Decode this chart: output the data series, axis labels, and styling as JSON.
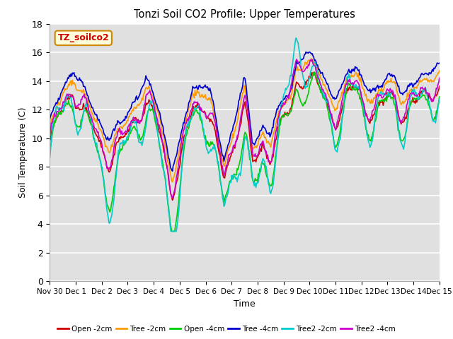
{
  "title": "Tonzi Soil CO2 Profile: Upper Temperatures",
  "xlabel": "Time",
  "ylabel": "Soil Temperature (C)",
  "ylim": [
    0,
    18
  ],
  "yticks": [
    0,
    2,
    4,
    6,
    8,
    10,
    12,
    14,
    16,
    18
  ],
  "x_labels": [
    "Nov 30",
    "Dec 1",
    "Dec 2",
    "Dec 3",
    "Dec 4",
    "Dec 5",
    "Dec 6",
    "Dec 7",
    "Dec 8",
    "Dec 9",
    "Dec 10",
    "Dec 11",
    "Dec 12",
    "Dec 13",
    "Dec 14",
    "Dec 15"
  ],
  "annotation_text": "TZ_soilco2",
  "annotation_color": "#cc0000",
  "annotation_bg": "#ffffdd",
  "annotation_border": "#cc8800",
  "series": [
    {
      "label": "Open -2cm",
      "color": "#cc0000",
      "lw": 1.2
    },
    {
      "label": "Tree -2cm",
      "color": "#ff9900",
      "lw": 1.2
    },
    {
      "label": "Open -4cm",
      "color": "#00cc00",
      "lw": 1.2
    },
    {
      "label": "Tree -4cm",
      "color": "#0000cc",
      "lw": 1.2
    },
    {
      "label": "Tree2 -2cm",
      "color": "#00cccc",
      "lw": 1.2
    },
    {
      "label": "Tree2 -4cm",
      "color": "#cc00cc",
      "lw": 1.2
    }
  ]
}
